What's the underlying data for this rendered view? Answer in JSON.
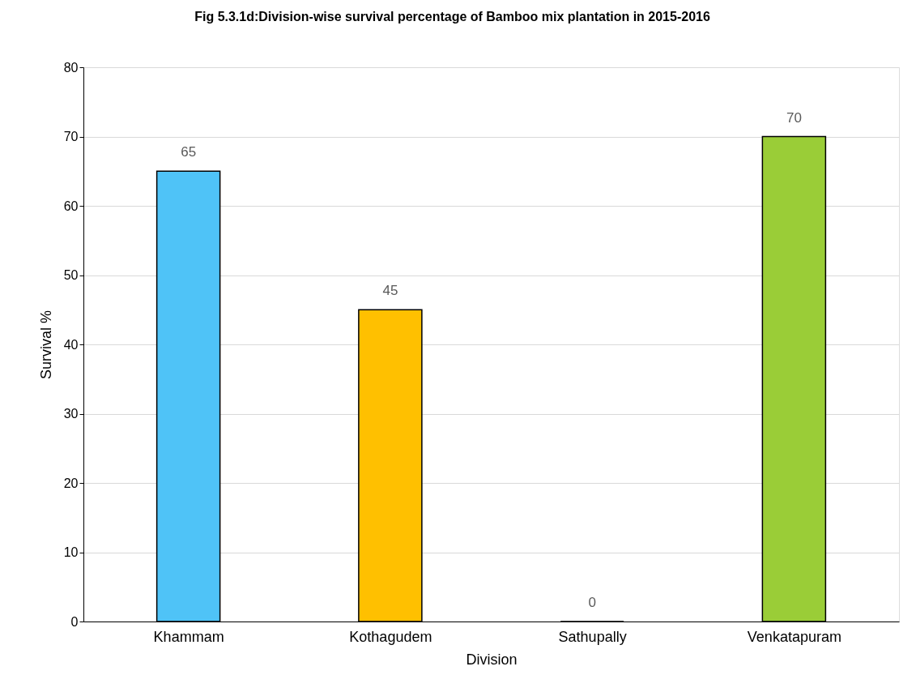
{
  "chart_data": {
    "type": "bar",
    "title": "Fig 5.3.1d:Division-wise survival percentage of Bamboo mix plantation in 2015-2016",
    "xlabel": "Division",
    "ylabel": "Survival %",
    "categories": [
      "Khammam",
      "Kothagudem",
      "Sathupally",
      "Venkatapuram"
    ],
    "values": [
      65,
      45,
      0,
      70
    ],
    "colors": [
      "#4fc3f7",
      "#ffc000",
      "#000000",
      "#9acd37"
    ],
    "ylim": [
      0,
      80
    ],
    "yticks": [
      0,
      10,
      20,
      30,
      40,
      50,
      60,
      70,
      80
    ],
    "grid": "y",
    "data_labels": true
  }
}
